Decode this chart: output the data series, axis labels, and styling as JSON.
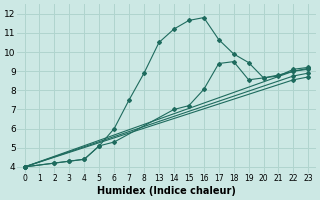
{
  "bg_color": "#cce8e4",
  "line_color": "#1e6b5e",
  "grid_color": "#b0d4ce",
  "xlabel": "Humidex (Indice chaleur)",
  "ylabel_ticks": [
    4,
    5,
    6,
    7,
    8,
    9,
    10,
    11,
    12
  ],
  "ylim": [
    3.7,
    12.5
  ],
  "xtick_labels": [
    "0",
    "1",
    "2",
    "3",
    "4",
    "5",
    "6",
    "7",
    "8",
    "13",
    "14",
    "15",
    "16",
    "17",
    "18",
    "19",
    "20",
    "21",
    "22",
    "23"
  ],
  "series": [
    {
      "xi": [
        0,
        2,
        3,
        4,
        5,
        6,
        7,
        8,
        9,
        10,
        11,
        12,
        13,
        14,
        15,
        16,
        17,
        18,
        19
      ],
      "y": [
        4.0,
        4.2,
        4.3,
        4.4,
        5.1,
        6.0,
        7.5,
        8.9,
        10.5,
        11.2,
        11.65,
        11.8,
        10.65,
        9.9,
        9.45,
        8.65,
        8.75,
        9.1,
        9.2
      ]
    },
    {
      "xi": [
        0,
        2,
        3,
        4,
        5,
        6,
        10,
        11,
        12,
        13,
        14,
        15,
        16,
        17,
        18,
        19
      ],
      "y": [
        4.0,
        4.2,
        4.3,
        4.4,
        5.1,
        5.3,
        7.0,
        7.2,
        8.05,
        9.4,
        9.5,
        8.55,
        8.65,
        8.8,
        9.0,
        9.15
      ]
    },
    {
      "xi": [
        0,
        18,
        19
      ],
      "y": [
        4.0,
        9.0,
        9.1
      ]
    },
    {
      "xi": [
        0,
        18,
        19
      ],
      "y": [
        4.0,
        8.75,
        8.9
      ]
    },
    {
      "xi": [
        0,
        18,
        19
      ],
      "y": [
        4.0,
        8.55,
        8.7
      ]
    }
  ]
}
